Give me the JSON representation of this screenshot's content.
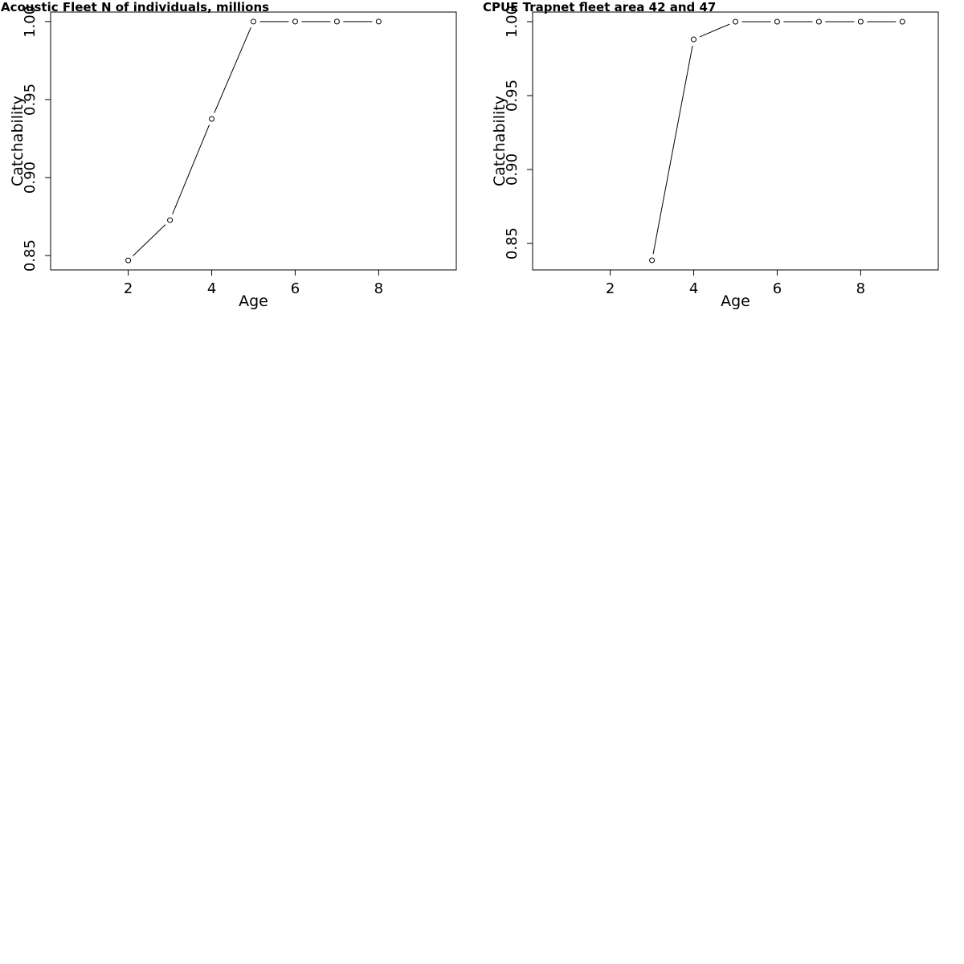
{
  "chart_data": [
    {
      "type": "line",
      "title": "Acoustic Fleet   N of individuals, millions",
      "x_label": "Age",
      "y_label": "Catchability",
      "x": [
        2,
        3,
        4,
        5,
        6,
        7,
        8
      ],
      "values": [
        0.8469,
        0.8727,
        0.9376,
        1.0,
        1.0,
        1.0,
        1.0
      ],
      "color": "#000000",
      "xlim": [
        0.14,
        9.86
      ],
      "xticks": [
        2,
        4,
        6,
        8
      ],
      "ylim": [
        0.8408,
        1.0061
      ],
      "yticks": [
        0.85,
        {
          "value": 0.9,
          "label": "0.90"
        },
        0.95,
        {
          "value": 1.0,
          "label": "1.00"
        }
      ]
    },
    {
      "type": "line",
      "title": "CPUE Trapnet fleet area 42 and 47",
      "x_label": "Age",
      "y_label": "Catchability",
      "x": [
        3,
        4,
        5,
        6,
        7,
        8,
        9
      ],
      "values": [
        0.8386,
        0.988,
        1.0,
        1.0,
        1.0,
        1.0,
        1.0
      ],
      "color": "#000000",
      "xlim": [
        0.14,
        9.86
      ],
      "xticks": [
        2,
        4,
        6,
        8
      ],
      "ylim": [
        0.8321,
        1.0065
      ],
      "yticks": [
        0.85,
        {
          "value": 0.9,
          "label": "0.90"
        },
        0.95,
        {
          "value": 1.0,
          "label": "1.00"
        }
      ]
    }
  ]
}
